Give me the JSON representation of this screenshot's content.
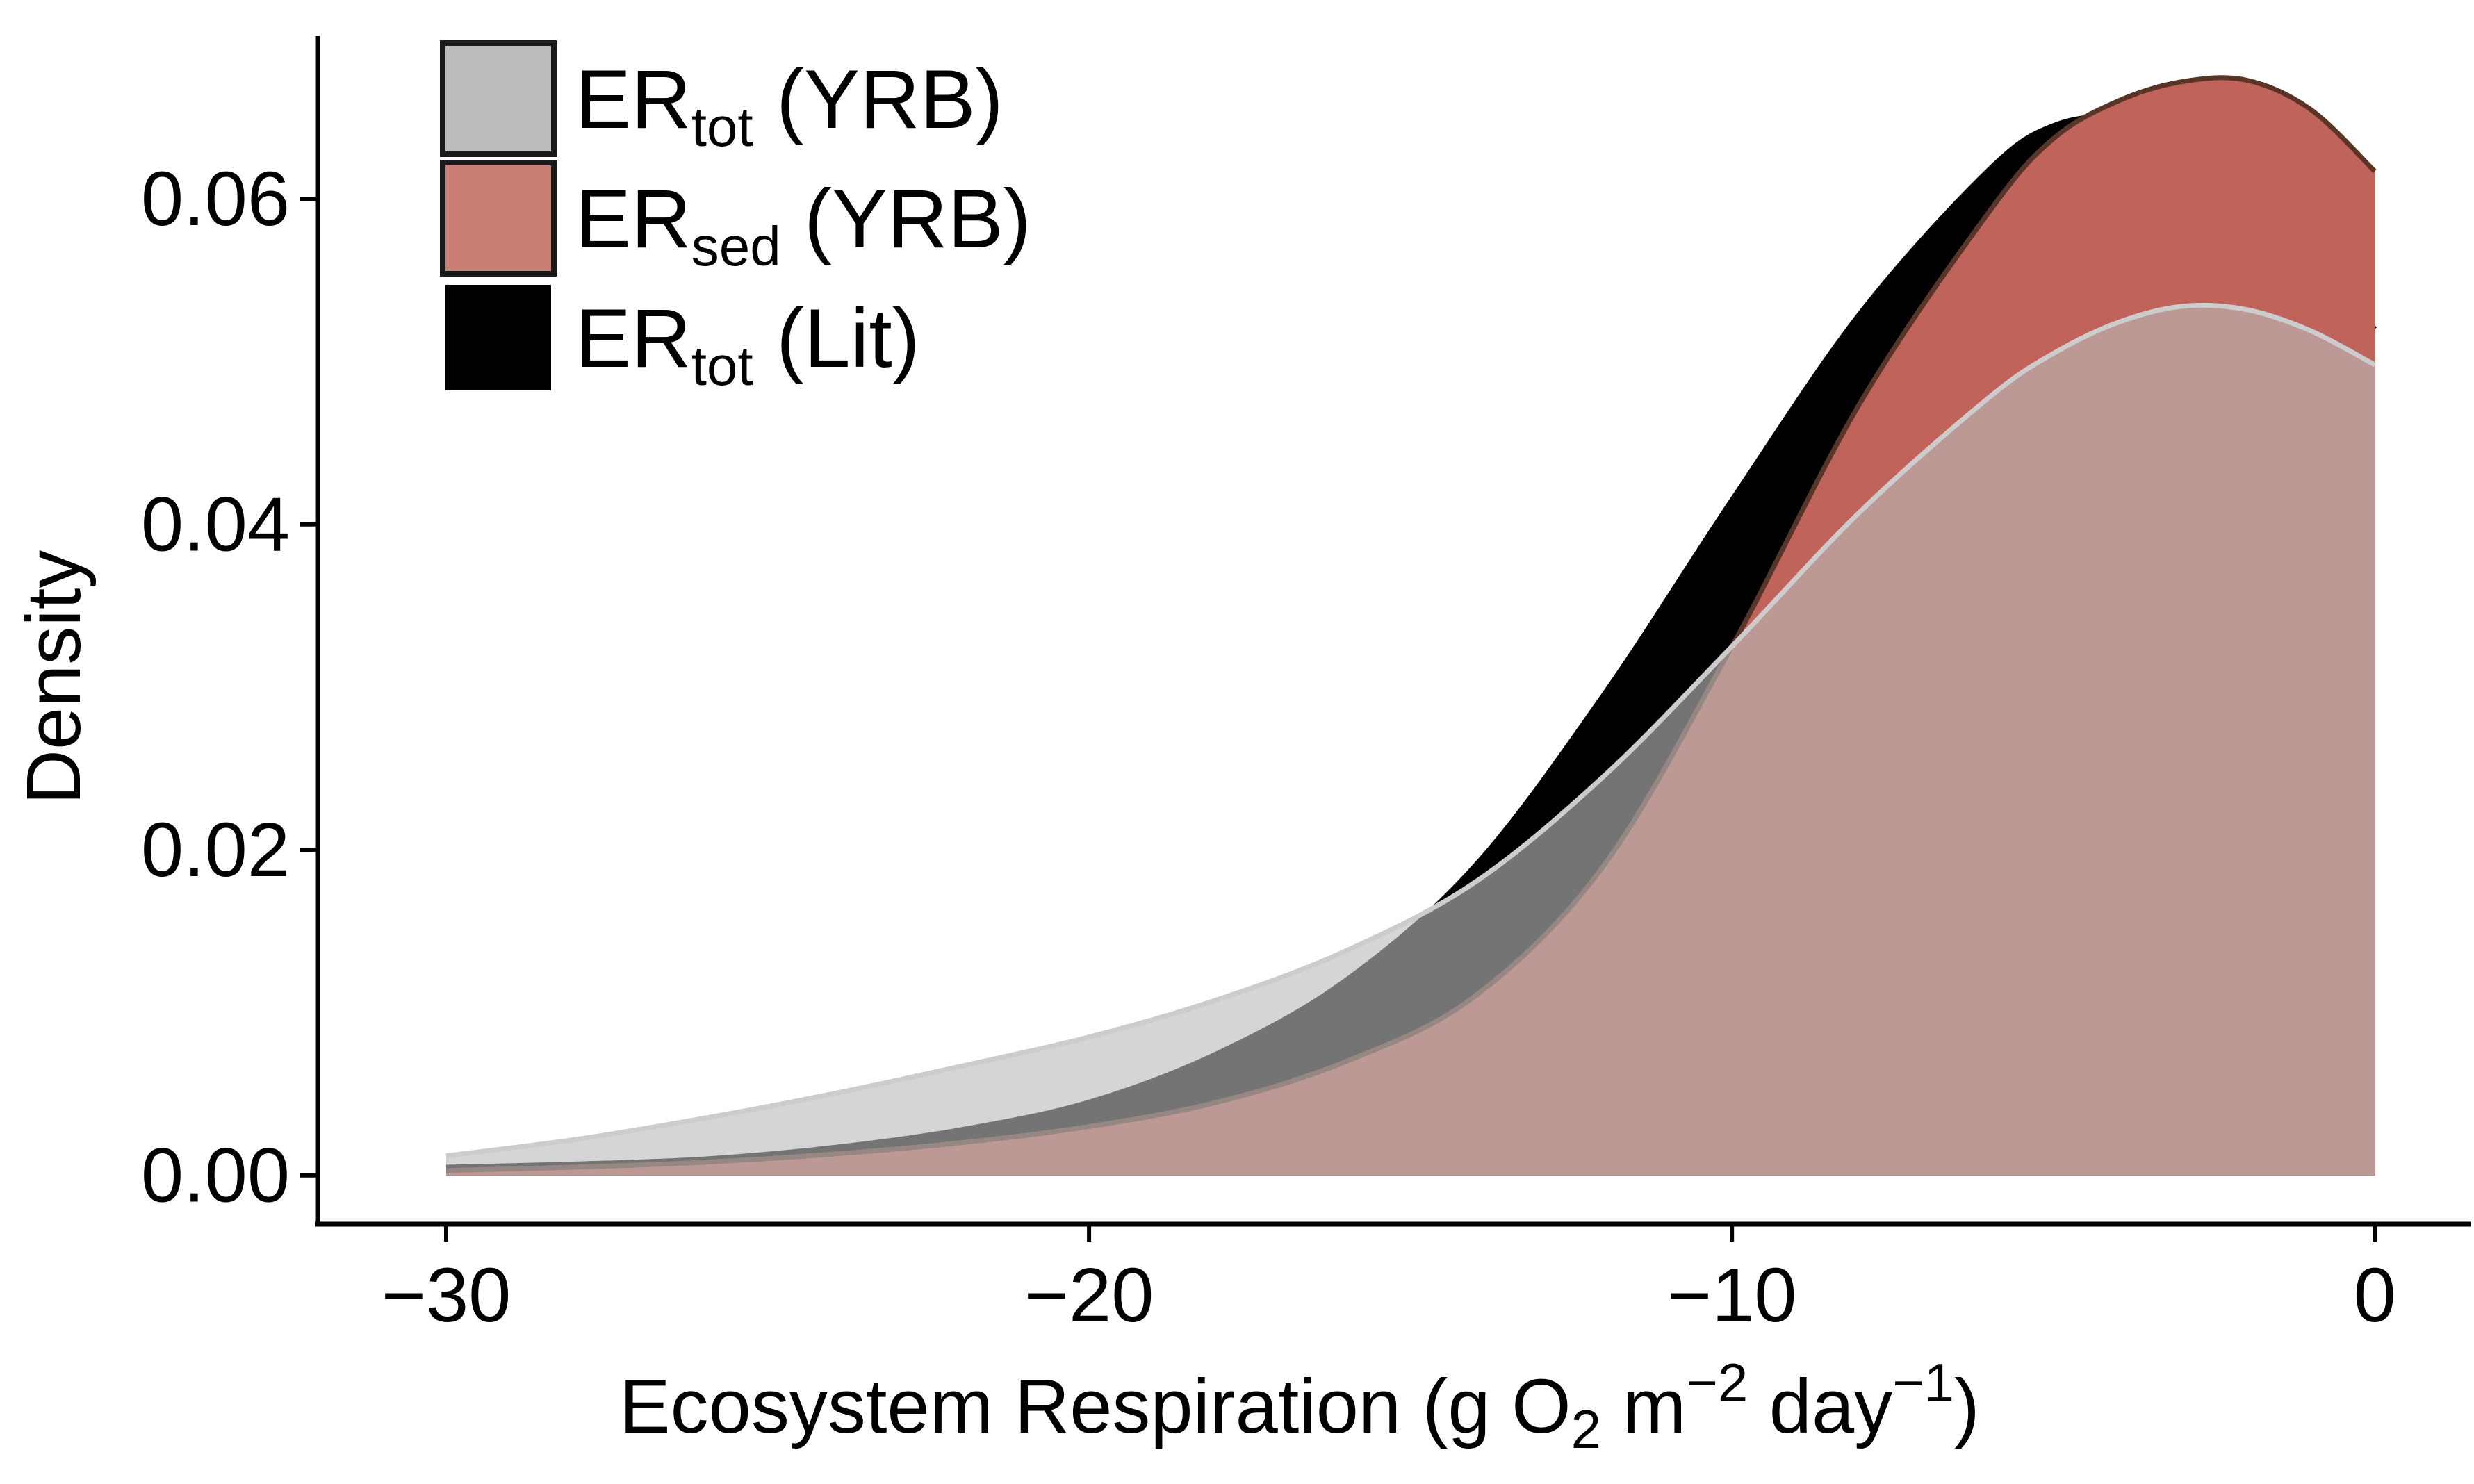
{
  "chart_data": {
    "type": "area",
    "xlabel": {
      "prefix": "Ecosystem Respiration (g O",
      "sub": "2",
      "mid": " m",
      "sup1": "−2",
      "mid2": " day",
      "sup2": "−1",
      "suffix": ")"
    },
    "ylabel": "Density",
    "xlim": [
      -32,
      1.5
    ],
    "ylim": [
      -0.003,
      0.07
    ],
    "xticks": [
      -30,
      -20,
      -10,
      0
    ],
    "xtick_labels": [
      "−30",
      "−20",
      "−10",
      "0"
    ],
    "yticks": [
      0.0,
      0.02,
      0.04,
      0.06
    ],
    "ytick_labels": [
      "0.00",
      "0.02",
      "0.04",
      "0.06"
    ],
    "grid": false,
    "legend_position": "top-left",
    "x": [
      -30,
      -28,
      -26,
      -24,
      -22,
      -20,
      -18,
      -16,
      -14,
      -12,
      -10,
      -8,
      -6,
      -5,
      -4,
      -3,
      -2,
      -1,
      0
    ],
    "series": [
      {
        "key": "lit",
        "name_main": "ER",
        "name_sub": "tot",
        "name_tail": " (Lit)",
        "fill": "#000000",
        "stroke": "#000000",
        "values": [
          0.0005,
          0.0007,
          0.001,
          0.0017,
          0.0028,
          0.0045,
          0.0075,
          0.012,
          0.019,
          0.0295,
          0.0415,
          0.053,
          0.0618,
          0.0645,
          0.065,
          0.0638,
          0.0608,
          0.0568,
          0.052
        ]
      },
      {
        "key": "sed",
        "name_main": "ER",
        "name_sub": "sed",
        "name_tail": " (YRB)",
        "fill": "#c0635a",
        "stroke": "#5a3426",
        "values": [
          0.0003,
          0.0005,
          0.0008,
          0.0013,
          0.002,
          0.003,
          0.0045,
          0.007,
          0.011,
          0.019,
          0.0325,
          0.0475,
          0.0592,
          0.0637,
          0.066,
          0.0672,
          0.0673,
          0.0655,
          0.0617
        ]
      },
      {
        "key": "tot",
        "name_main": "ER",
        "name_sub": "tot",
        "name_tail": " (YRB)",
        "fill": "#bcbcbc",
        "stroke": "#cccccc",
        "values": [
          0.0012,
          0.0022,
          0.0035,
          0.005,
          0.0067,
          0.0085,
          0.0108,
          0.0138,
          0.018,
          0.0245,
          0.0325,
          0.0408,
          0.0478,
          0.0505,
          0.0524,
          0.0534,
          0.0532,
          0.0519,
          0.0498
        ]
      }
    ],
    "legend_fills": [
      "#bcbcbc",
      "#c97f75",
      "#000000"
    ],
    "legend_order": [
      "tot",
      "sed",
      "lit"
    ]
  }
}
